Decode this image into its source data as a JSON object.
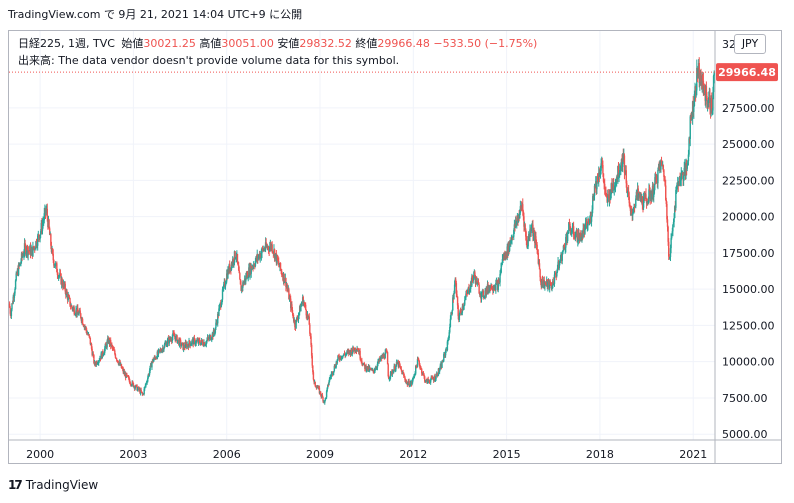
{
  "header": {
    "title": "TradingView.com で 9月 21, 2021 14:04 UTC+9 に公開"
  },
  "legend": {
    "symbol": "日経225, 1週, TVC",
    "open_label": "始値",
    "open": "30021.25",
    "high_label": "高値",
    "high": "30051.00",
    "low_label": "安値",
    "low": "29832.52",
    "close_label": "終値",
    "close": "29966.48",
    "change": "−533.50 (−1.75%)",
    "volume_note": "出来高: The data vendor doesn't provide volume data for this symbol."
  },
  "currency_button": "JPY",
  "last_price_label": "29966.48",
  "footer": {
    "brand": "TradingView",
    "logo": "17"
  },
  "colors": {
    "up": "#26a69a",
    "down": "#ef5350",
    "grid": "#f0f3fa",
    "axis_text": "#131722",
    "price_line": "#ef5350"
  },
  "chart_data": {
    "type": "candlestick",
    "interval": "weekly",
    "y_axis": {
      "position": "right",
      "range": [
        4600,
        32800
      ],
      "tick_values": [
        5000,
        7500,
        10000,
        12500,
        15000,
        17500,
        20000,
        22500,
        25000,
        27500
      ],
      "tick_labels": [
        "5000.00",
        "7500.00",
        "10000.00",
        "12500.00",
        "15000.00",
        "17500.00",
        "20000.00",
        "22500.00",
        "25000.00",
        "27500.00"
      ],
      "top_partial_label": "32"
    },
    "x_axis": {
      "range": [
        1999.0,
        2021.7
      ],
      "tick_values": [
        2000,
        2003,
        2006,
        2009,
        2012,
        2015,
        2018,
        2021
      ],
      "tick_labels": [
        "2000",
        "2003",
        "2006",
        "2009",
        "2012",
        "2015",
        "2018",
        "2021"
      ]
    },
    "grid": true,
    "last_close": 29966.48,
    "anchors": [
      [
        1999.0,
        14000
      ],
      [
        1999.05,
        13300
      ],
      [
        1999.25,
        16000
      ],
      [
        1999.5,
        17800
      ],
      [
        1999.75,
        17600
      ],
      [
        2000.0,
        18900
      ],
      [
        2000.2,
        20500
      ],
      [
        2000.4,
        17200
      ],
      [
        2000.6,
        16000
      ],
      [
        2000.8,
        15000
      ],
      [
        2001.0,
        13800
      ],
      [
        2001.3,
        13200
      ],
      [
        2001.6,
        11500
      ],
      [
        2001.75,
        9800
      ],
      [
        2002.0,
        10500
      ],
      [
        2002.2,
        11500
      ],
      [
        2002.45,
        10300
      ],
      [
        2002.7,
        9200
      ],
      [
        2002.9,
        8600
      ],
      [
        2003.2,
        8000
      ],
      [
        2003.3,
        7700
      ],
      [
        2003.6,
        10000
      ],
      [
        2003.85,
        10700
      ],
      [
        2004.1,
        11400
      ],
      [
        2004.3,
        11800
      ],
      [
        2004.6,
        11000
      ],
      [
        2004.9,
        11400
      ],
      [
        2005.3,
        11300
      ],
      [
        2005.6,
        12000
      ],
      [
        2005.8,
        14000
      ],
      [
        2006.0,
        16000
      ],
      [
        2006.3,
        17500
      ],
      [
        2006.45,
        15000
      ],
      [
        2006.7,
        16200
      ],
      [
        2007.0,
        17200
      ],
      [
        2007.2,
        17800
      ],
      [
        2007.45,
        18000
      ],
      [
        2007.7,
        16500
      ],
      [
        2007.9,
        15500
      ],
      [
        2008.2,
        12500
      ],
      [
        2008.45,
        14300
      ],
      [
        2008.65,
        12700
      ],
      [
        2008.8,
        8500
      ],
      [
        2008.9,
        8300
      ],
      [
        2009.15,
        7200
      ],
      [
        2009.3,
        8800
      ],
      [
        2009.6,
        10300
      ],
      [
        2009.9,
        10600
      ],
      [
        2010.2,
        11000
      ],
      [
        2010.4,
        9700
      ],
      [
        2010.7,
        9300
      ],
      [
        2010.95,
        10200
      ],
      [
        2011.15,
        10600
      ],
      [
        2011.2,
        8900
      ],
      [
        2011.5,
        9900
      ],
      [
        2011.8,
        8500
      ],
      [
        2011.95,
        8500
      ],
      [
        2012.15,
        10100
      ],
      [
        2012.4,
        8600
      ],
      [
        2012.7,
        8900
      ],
      [
        2012.9,
        9700
      ],
      [
        2013.1,
        11200
      ],
      [
        2013.35,
        15600
      ],
      [
        2013.45,
        13000
      ],
      [
        2013.7,
        14500
      ],
      [
        2013.95,
        16000
      ],
      [
        2014.2,
        14500
      ],
      [
        2014.45,
        15200
      ],
      [
        2014.75,
        15300
      ],
      [
        2014.85,
        17000
      ],
      [
        2015.0,
        17500
      ],
      [
        2015.3,
        19500
      ],
      [
        2015.5,
        20800
      ],
      [
        2015.65,
        18000
      ],
      [
        2015.8,
        19500
      ],
      [
        2016.0,
        17500
      ],
      [
        2016.1,
        15500
      ],
      [
        2016.45,
        15200
      ],
      [
        2016.8,
        17500
      ],
      [
        2017.0,
        19200
      ],
      [
        2017.35,
        18500
      ],
      [
        2017.7,
        19800
      ],
      [
        2017.8,
        21800
      ],
      [
        2017.95,
        22800
      ],
      [
        2018.05,
        23800
      ],
      [
        2018.2,
        21000
      ],
      [
        2018.5,
        22500
      ],
      [
        2018.75,
        24200
      ],
      [
        2018.9,
        21500
      ],
      [
        2018.99,
        20000
      ],
      [
        2019.2,
        21500
      ],
      [
        2019.4,
        21000
      ],
      [
        2019.7,
        21700
      ],
      [
        2019.95,
        23600
      ],
      [
        2020.05,
        23300
      ],
      [
        2020.18,
        19500
      ],
      [
        2020.22,
        16600
      ],
      [
        2020.35,
        19700
      ],
      [
        2020.5,
        22400
      ],
      [
        2020.8,
        23300
      ],
      [
        2020.9,
        26400
      ],
      [
        2021.05,
        28500
      ],
      [
        2021.15,
        30200
      ],
      [
        2021.3,
        29000
      ],
      [
        2021.45,
        28100
      ],
      [
        2021.62,
        27500
      ],
      [
        2021.67,
        30300
      ],
      [
        2021.69,
        29966.48
      ]
    ]
  }
}
